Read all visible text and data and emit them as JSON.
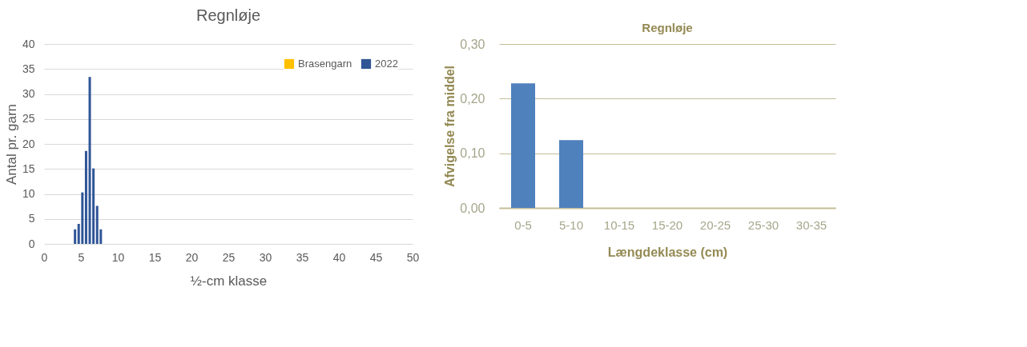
{
  "chart_data": [
    {
      "type": "bar",
      "title": "Regnløje",
      "xlabel": "½-cm klasse",
      "ylabel": "Antal pr. garn",
      "x": [
        4.2,
        4.7,
        5.2,
        5.7,
        6.2,
        6.7,
        7.2,
        7.7
      ],
      "series": [
        {
          "name": "Brasengarn",
          "color": "#ffc000",
          "values": [
            null,
            null,
            null,
            null,
            null,
            null,
            null,
            null
          ]
        },
        {
          "name": "2022",
          "color": "#2f5597",
          "values": [
            2.9,
            4.0,
            10.3,
            18.6,
            33.4,
            15.1,
            7.6,
            2.9
          ]
        }
      ],
      "xlim": [
        0,
        50
      ],
      "xticks": [
        0,
        5,
        10,
        15,
        20,
        25,
        30,
        35,
        40,
        45,
        50
      ],
      "ylim": [
        0,
        40
      ],
      "yticks": [
        0,
        5,
        10,
        15,
        20,
        25,
        30,
        35,
        40
      ],
      "grid": "y",
      "legend": "top right"
    },
    {
      "type": "bar",
      "title": "Regnløje",
      "xlabel": "Længdeklasse (cm)",
      "ylabel": "Afvigelse fra middel",
      "categories": [
        "0-5",
        "5-10",
        "10-15",
        "15-20",
        "20-25",
        "25-30",
        "30-35"
      ],
      "values": [
        0.228,
        0.124,
        0,
        0,
        0,
        0,
        0
      ],
      "color": "#4f81bd",
      "ylim": [
        0,
        0.3
      ],
      "yticks": [
        {
          "value": 0,
          "label": "0,00"
        },
        {
          "value": 0.1,
          "label": "0,10"
        },
        {
          "value": 0.2,
          "label": "0,20"
        },
        {
          "value": 0.3,
          "label": "0,30"
        }
      ],
      "grid": "y"
    }
  ]
}
